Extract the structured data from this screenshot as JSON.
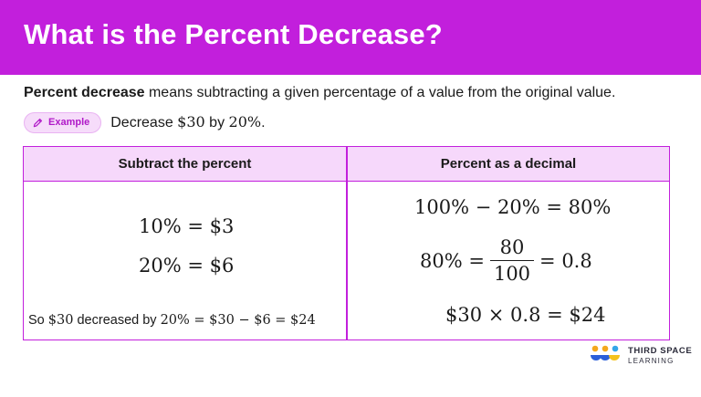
{
  "header": {
    "title": "What is the Percent Decrease?"
  },
  "definition": {
    "term": "Percent decrease",
    "rest": " means subtracting a given percentage of a value from the original value."
  },
  "example": {
    "pill_label": "Example",
    "icon": "pencil-icon",
    "prefix": "Decrease ",
    "amount": "$30",
    "middle": " by ",
    "percent": "20%",
    "suffix": "."
  },
  "table": {
    "headers": [
      "Subtract the percent",
      "Percent as a decimal"
    ],
    "left": {
      "line1": "10% = $3",
      "line2": "20% = $6",
      "conclusion_prefix": "So ",
      "conclusion_amount": "$30",
      "conclusion_middle": " decreased by ",
      "conclusion_math": "20% = $30 − $6 = $24"
    },
    "right": {
      "line1": "100% − 20% = 80%",
      "line2_left": "80% =",
      "fraction_num": "80",
      "fraction_den": "100",
      "line2_right": "= 0.8",
      "line3": "$30 × 0.8 = $24"
    }
  },
  "logo": {
    "line1": "THIRD SPACE",
    "line2": "LEARNING"
  },
  "colors": {
    "brand": "#c21fdc",
    "header_bg": "#f6d8fb",
    "pill_bg": "#f6dcfa"
  }
}
